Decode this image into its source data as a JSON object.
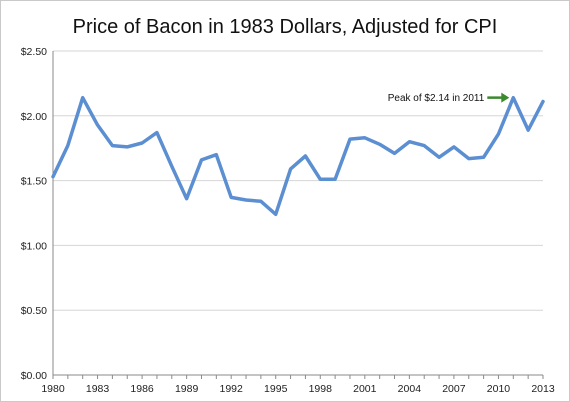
{
  "chart_data": {
    "type": "line",
    "title": "Price of Bacon in 1983 Dollars, Adjusted for CPI",
    "xlabel": "",
    "ylabel": "",
    "x": [
      1980,
      1981,
      1982,
      1983,
      1984,
      1985,
      1986,
      1987,
      1988,
      1989,
      1990,
      1991,
      1992,
      1993,
      1994,
      1995,
      1996,
      1997,
      1998,
      1999,
      2000,
      2001,
      2002,
      2003,
      2004,
      2005,
      2006,
      2007,
      2008,
      2009,
      2010,
      2011,
      2012,
      2013
    ],
    "series": [
      {
        "color": "#5b8fd1",
        "values": [
          1.53,
          1.77,
          2.14,
          1.93,
          1.77,
          1.76,
          1.79,
          1.87,
          1.61,
          1.36,
          1.66,
          1.7,
          1.37,
          1.35,
          1.34,
          1.24,
          1.59,
          1.69,
          1.51,
          1.51,
          1.82,
          1.83,
          1.78,
          1.71,
          1.8,
          1.77,
          1.68,
          1.76,
          1.67,
          1.68,
          1.86,
          2.14,
          1.89,
          2.11
        ]
      }
    ],
    "ylim": [
      0,
      2.5
    ],
    "xlim": [
      1980,
      2013
    ],
    "y_ticks": [
      0,
      0.5,
      1.0,
      1.5,
      2.0,
      2.5
    ],
    "y_tick_labels": [
      "$0.00",
      "$0.50",
      "$1.00",
      "$1.50",
      "$2.00",
      "$2.50"
    ],
    "x_ticks": [
      1980,
      1983,
      1986,
      1989,
      1992,
      1995,
      1998,
      2001,
      2004,
      2007,
      2010,
      2013
    ],
    "x_tick_labels": [
      "1980",
      "1983",
      "1986",
      "1989",
      "1992",
      "1995",
      "1998",
      "2001",
      "2004",
      "2007",
      "2010",
      "2013"
    ],
    "grid": true,
    "legend": "none",
    "annotations": [
      {
        "text": "Peak of $2.14 in 2011",
        "x": 2011,
        "y": 2.14,
        "arrow_color": "#3a8a2e"
      }
    ]
  }
}
